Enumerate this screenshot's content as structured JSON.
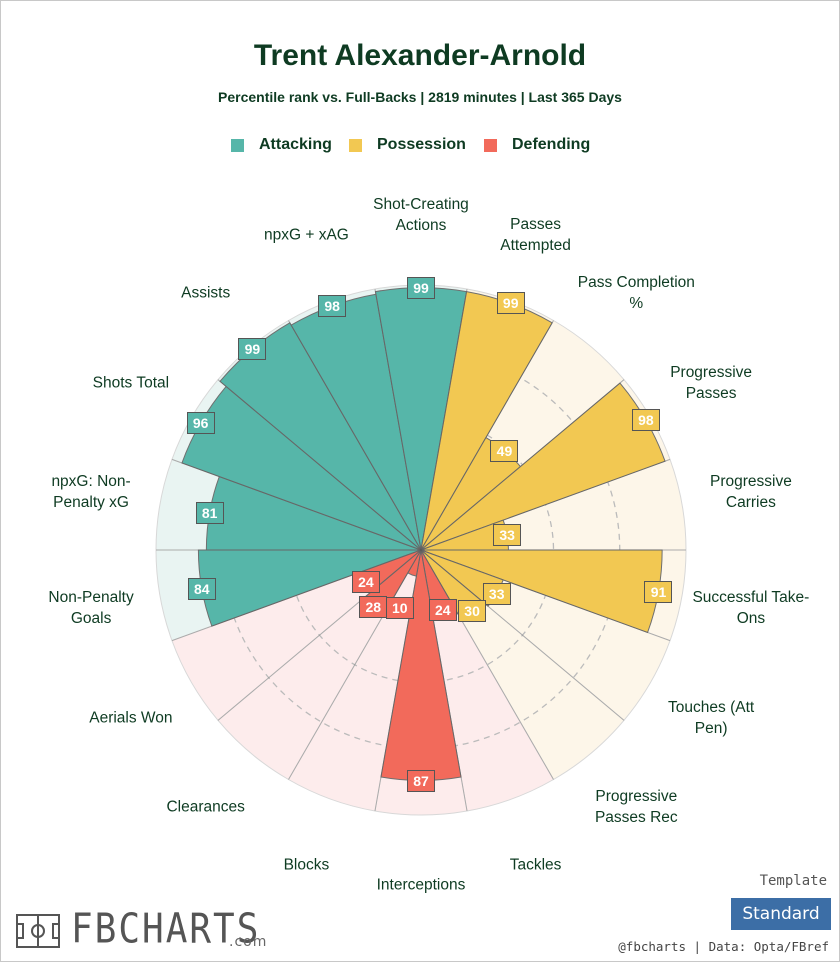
{
  "chart_data": {
    "type": "polar_bar",
    "title": "Trent Alexander-Arnold",
    "subtitle": "Percentile rank vs. Full-Backs | 2819 minutes | Last 365 Days",
    "rlim": [
      0,
      100
    ],
    "rticks": [
      25,
      50,
      75,
      100
    ],
    "series": [
      {
        "name": "Attacking",
        "color": "#56b6a9",
        "background": "#e9f4f2",
        "categories": [
          "Non-Penalty Goals",
          "npxG: Non-Penalty xG",
          "Shots Total",
          "Assists",
          "npxG + xAG",
          "Shot-Creating Actions"
        ],
        "values": [
          84,
          81,
          96,
          99,
          98,
          99
        ]
      },
      {
        "name": "Possession",
        "color": "#f2c852",
        "background": "#fdf6e9",
        "categories": [
          "Passes Attempted",
          "Pass Completion %",
          "Progressive Passes",
          "Progressive Carries",
          "Successful Take-Ons",
          "Touches (Att Pen)",
          "Progressive Passes Rec"
        ],
        "values": [
          99,
          49,
          98,
          33,
          91,
          33,
          30
        ]
      },
      {
        "name": "Defending",
        "color": "#f26a5b",
        "background": "#fdecec",
        "categories": [
          "Tackles",
          "Interceptions",
          "Blocks",
          "Clearances",
          "Aerials Won"
        ],
        "values": [
          24,
          87,
          10,
          28,
          24
        ]
      }
    ],
    "template_label": "Template",
    "template": "Standard",
    "credit": "@fbcharts | Data: Opta/FBref",
    "logo": "FBCHARTS",
    "logo_suffix": ".com"
  }
}
